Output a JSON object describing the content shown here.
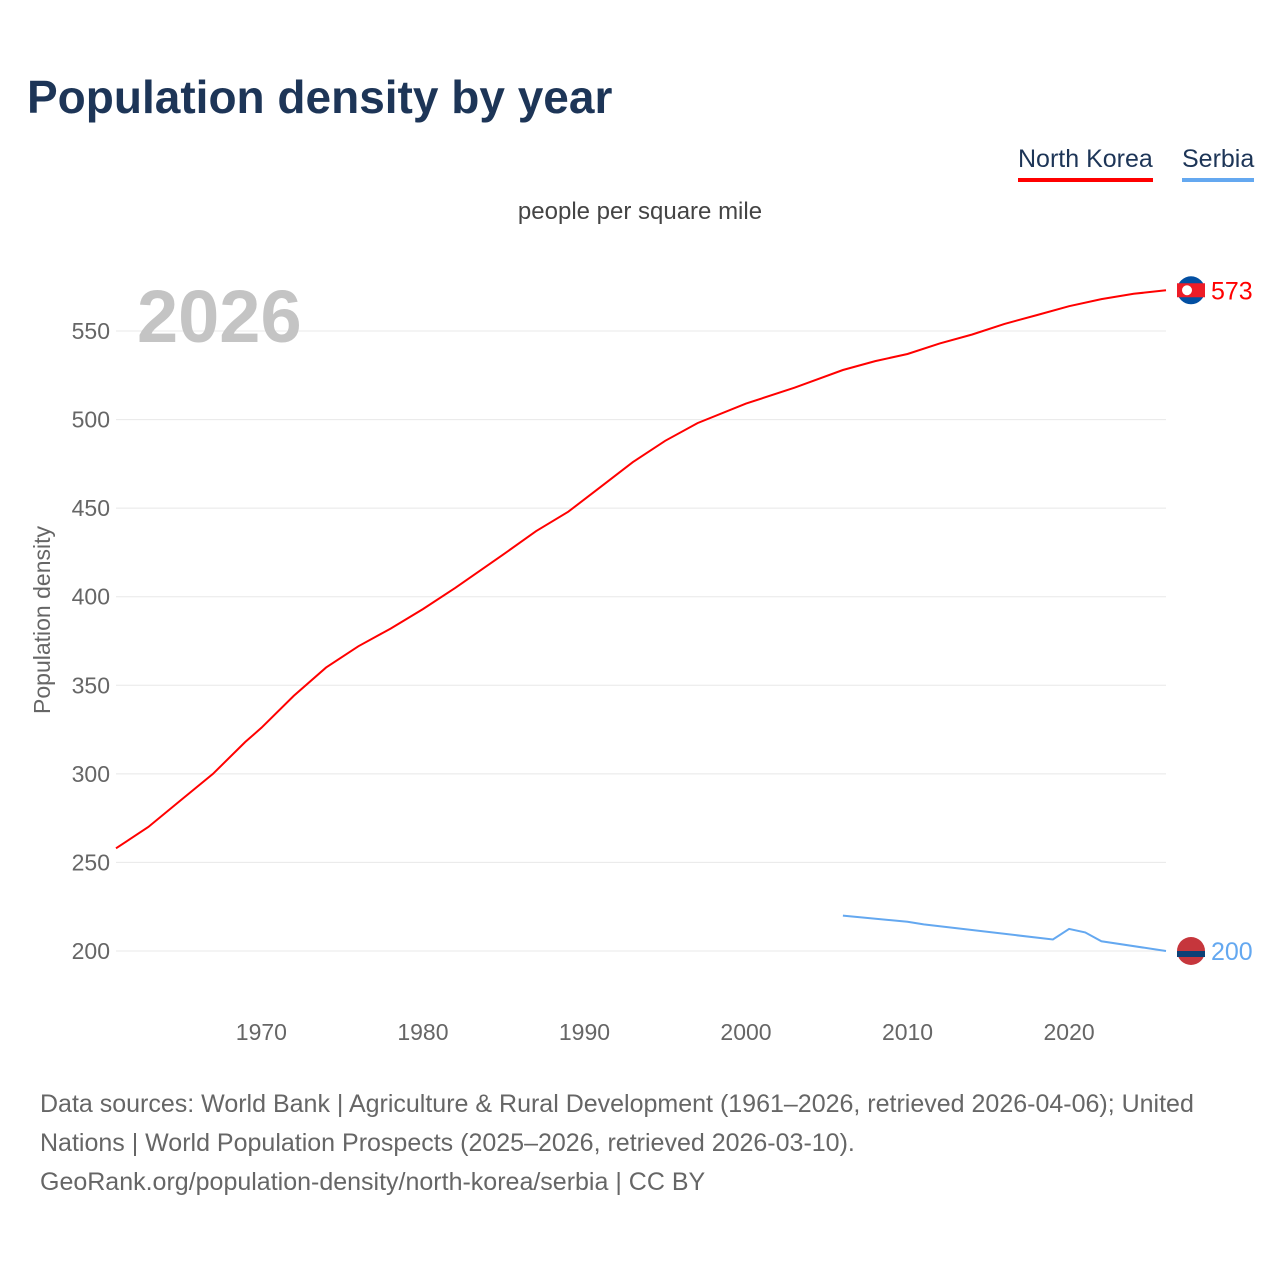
{
  "title": "Population density by year",
  "subtitle": "people per square mile",
  "year_watermark": "2026",
  "footer": {
    "line1": "Data sources: World Bank | Agriculture & Rural Development (1961–2026, retrieved 2026-04-06); United Nations | World Population Prospects (2025–2026, retrieved 2026-03-10).",
    "line2": "GeoRank.org/population-density/north-korea/serbia | CC BY"
  },
  "chart_data": {
    "type": "line",
    "title": "Population density by year",
    "xlabel": "",
    "ylabel": "Population density",
    "xlim": [
      1961,
      2026
    ],
    "ylim": [
      170,
      590
    ],
    "xticks": [
      1970,
      1980,
      1990,
      2000,
      2010,
      2020
    ],
    "yticks": [
      200,
      250,
      300,
      350,
      400,
      450,
      500,
      550
    ],
    "legend_placement": "top-right",
    "series": [
      {
        "name": "North Korea",
        "color": "#ff0000",
        "end_label": "573",
        "x": [
          1961,
          1963,
          1965,
          1967,
          1969,
          1970,
          1972,
          1974,
          1976,
          1978,
          1980,
          1982,
          1985,
          1987,
          1989,
          1991,
          1993,
          1995,
          1997,
          2000,
          2003,
          2006,
          2008,
          2010,
          2012,
          2014,
          2016,
          2018,
          2020,
          2022,
          2024,
          2026
        ],
        "y": [
          258,
          270,
          285,
          300,
          318,
          326,
          344,
          360,
          372,
          382,
          393,
          405,
          424,
          437,
          448,
          462,
          476,
          488,
          498,
          509,
          518,
          528,
          533,
          537,
          543,
          548,
          554,
          559,
          564,
          568,
          571,
          573
        ]
      },
      {
        "name": "Serbia",
        "color": "#64a8f0",
        "end_label": "200",
        "x": [
          2006,
          2010,
          2011,
          2019,
          2020,
          2021,
          2022,
          2026
        ],
        "y": [
          220,
          216.5,
          215,
          206.5,
          212.5,
          210.5,
          205.5,
          200
        ]
      }
    ]
  }
}
